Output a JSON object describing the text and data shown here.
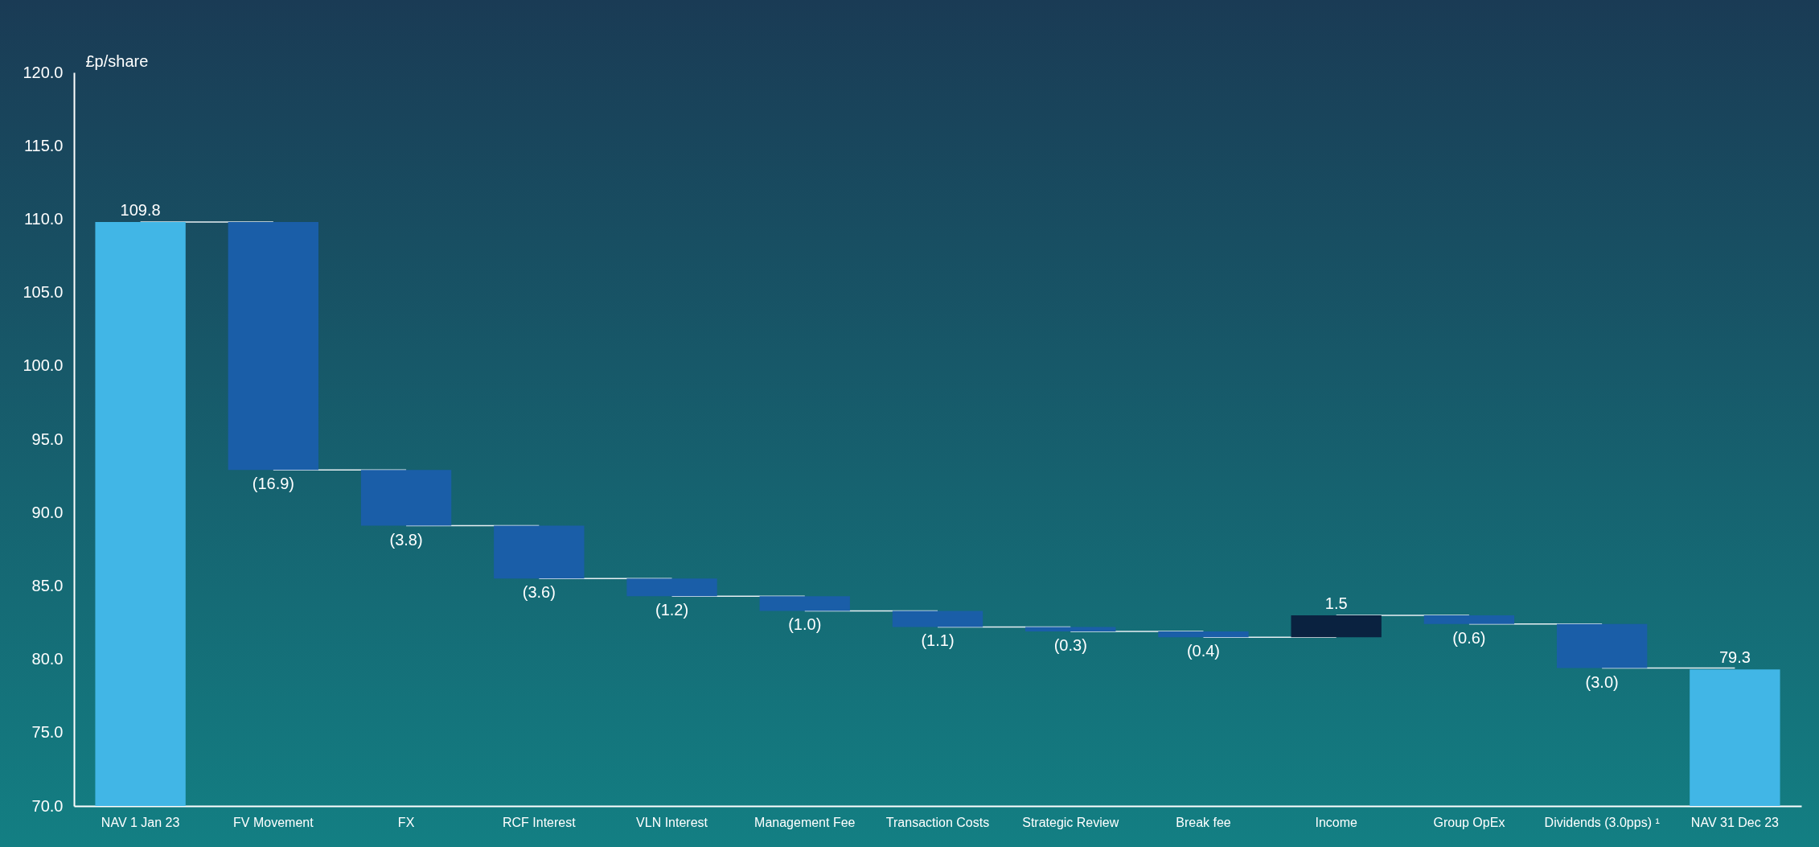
{
  "chart_data": {
    "type": "bar",
    "ylabel": "£p/share",
    "categories": [
      "NAV 1 Jan 23",
      "FV Movement",
      "FX",
      "RCF Interest",
      "VLN Interest",
      "Management Fee",
      "Transaction Costs",
      "Strategic Review",
      "Break fee",
      "Income",
      "Group OpEx",
      "Dividends (3.0pps) ¹",
      "NAV 31 Dec 23"
    ],
    "values": [
      109.8,
      -16.9,
      -3.8,
      -3.6,
      -1.2,
      -1.0,
      -1.1,
      -0.3,
      -0.4,
      1.5,
      -0.6,
      -3.0,
      79.3
    ],
    "base": [
      null,
      109.8,
      92.9,
      89.1,
      85.5,
      84.3,
      83.3,
      82.2,
      81.9,
      81.5,
      83.0,
      82.4,
      null
    ],
    "colors": [
      "#41b6e6",
      "#1a5ea8",
      "#1a5ea8",
      "#1a5ea8",
      "#1a5ea8",
      "#1a5ea8",
      "#1a5ea8",
      "#1a5ea8",
      "#1a5ea8",
      "#0a2240",
      "#1a5ea8",
      "#1a5ea8",
      "#41b6e6"
    ],
    "value_labels": [
      "109.8",
      "(16.9)",
      "(3.8)",
      "(3.6)",
      "(1.2)",
      "(1.0)",
      "(1.1)",
      "(0.3)",
      "(0.4)",
      "1.5",
      "(0.6)",
      "(3.0)",
      "79.3"
    ],
    "ylim": [
      70,
      120
    ],
    "yticks": [
      {
        "value": 70,
        "label": "70.0"
      },
      {
        "value": 75,
        "label": "75.0"
      },
      {
        "value": 80,
        "label": "80.0"
      },
      {
        "value": 85,
        "label": "85.0"
      },
      {
        "value": 90,
        "label": "90.0"
      },
      {
        "value": 95,
        "label": "95.0"
      },
      {
        "value": 100,
        "label": "100.0"
      },
      {
        "value": 105,
        "label": "105.0"
      },
      {
        "value": 110,
        "label": "110.0"
      },
      {
        "value": 115,
        "label": "115.0"
      },
      {
        "value": 120,
        "label": "120.0"
      }
    ],
    "grid": false,
    "legend": false
  }
}
